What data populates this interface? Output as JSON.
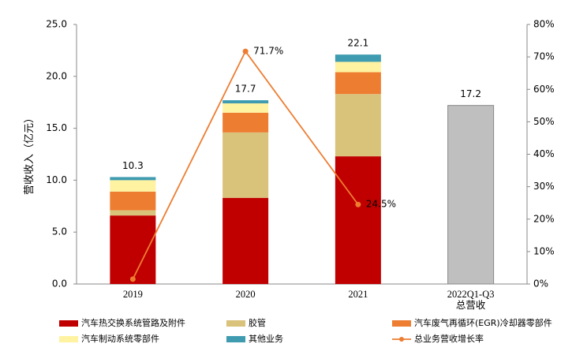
{
  "chart_data": {
    "type": "bar",
    "y_label": "营收收入（亿元）",
    "categories": [
      "2019",
      "2020",
      "2021",
      "2022Q1-Q3\n总营收"
    ],
    "series": [
      {
        "name": "汽车热交换系统管路及附件",
        "color": "#c00000",
        "values": [
          6.6,
          8.3,
          12.3,
          null
        ]
      },
      {
        "name": "胶管",
        "color": "#d9c27a",
        "values": [
          0.5,
          6.3,
          6.0,
          null
        ]
      },
      {
        "name": "汽车废气再循环(EGR)冷却器零部件",
        "color": "#ed7d31",
        "values": [
          1.8,
          1.9,
          2.1,
          null
        ]
      },
      {
        "name": "汽车制动系统零部件",
        "color": "#fff2a0",
        "values": [
          1.1,
          0.9,
          1.0,
          null
        ]
      },
      {
        "name": "其他业务",
        "color": "#3e9bb0",
        "values": [
          0.3,
          0.3,
          0.7,
          null
        ]
      },
      {
        "name": "总业务营收增长率",
        "type": "line",
        "axis": "y2",
        "color": "#ed7d31",
        "values": [
          1.5,
          71.7,
          24.5,
          null
        ],
        "value_labels": [
          null,
          "71.7%",
          "24.5%",
          null
        ]
      }
    ],
    "totals": [
      10.3,
      17.7,
      22.1,
      17.2
    ],
    "total_bar_color": "#bfbfbf",
    "ylim": [
      0,
      25
    ],
    "yticks": [
      {
        "value": 0,
        "label": "0.0"
      },
      {
        "value": 5,
        "label": "5.0"
      },
      {
        "value": 10,
        "label": "10.0"
      },
      {
        "value": 15,
        "label": "15.0"
      },
      {
        "value": 20,
        "label": "20.0"
      },
      {
        "value": 25,
        "label": "25.0"
      }
    ],
    "y2lim": [
      0,
      80
    ],
    "y2ticks": [
      {
        "value": 0,
        "label": "0%"
      },
      {
        "value": 10,
        "label": "10%"
      },
      {
        "value": 20,
        "label": "20%"
      },
      {
        "value": 30,
        "label": "30%"
      },
      {
        "value": 40,
        "label": "40%"
      },
      {
        "value": 50,
        "label": "50%"
      },
      {
        "value": 60,
        "label": "60%"
      },
      {
        "value": 70,
        "label": "70%"
      },
      {
        "value": 80,
        "label": "80%"
      }
    ],
    "grid": false
  }
}
